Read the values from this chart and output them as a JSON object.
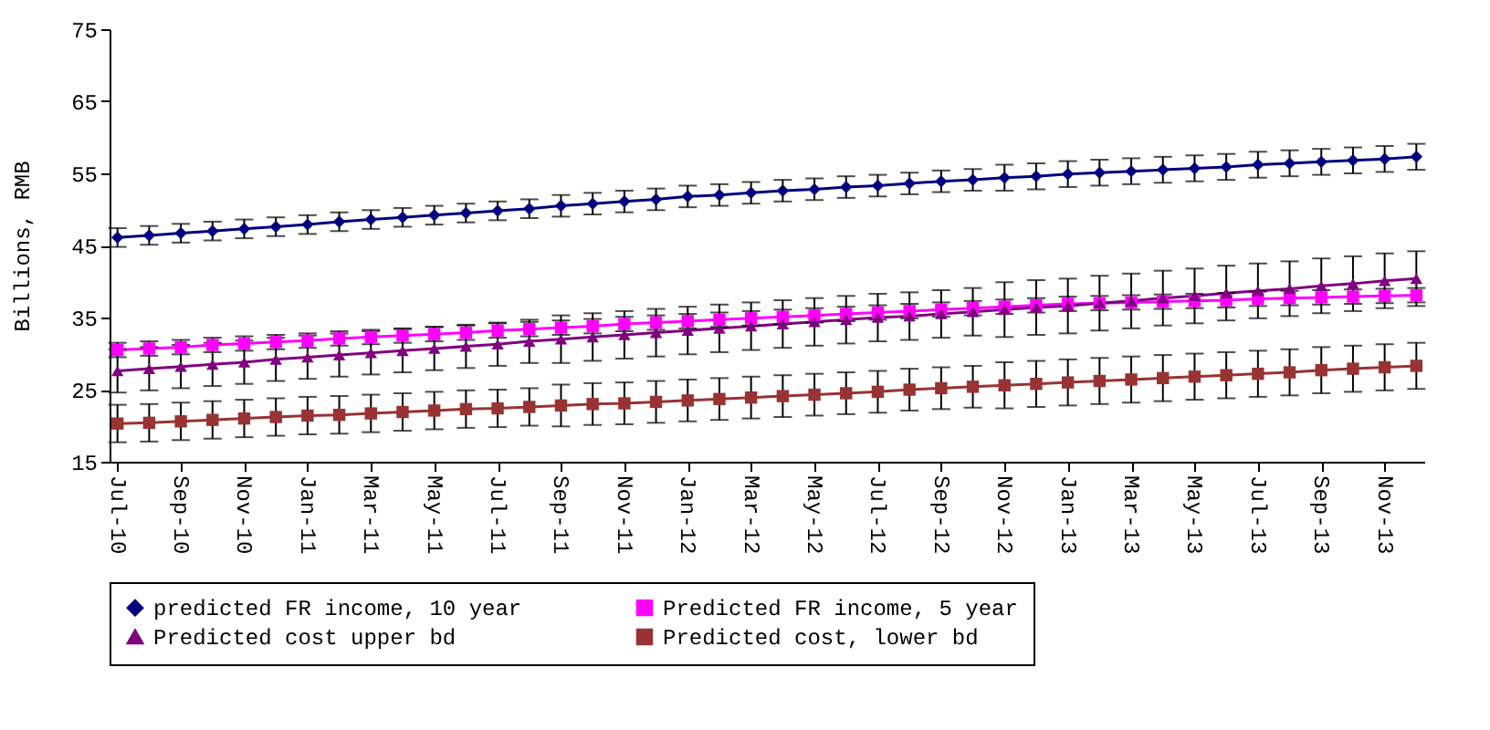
{
  "chart_data": {
    "type": "line",
    "ylabel": "Billions, RMB",
    "categories": [
      "Jul-10",
      null,
      "Sep-10",
      null,
      "Nov-10",
      null,
      "Jan-11",
      null,
      "Mar-11",
      null,
      "May-11",
      null,
      "Jul-11",
      null,
      "Sep-11",
      null,
      "Nov-11",
      null,
      "Jan-12",
      null,
      "Mar-12",
      null,
      "May-12",
      null,
      "Jul-12",
      null,
      "Sep-12",
      null,
      "Nov-12",
      null,
      "Jan-13",
      null,
      "Mar-13",
      null,
      "May-13",
      null,
      "Jul-13",
      null,
      "Sep-13",
      null,
      "Nov-13",
      null
    ],
    "ylim": [
      15,
      75
    ],
    "yticks": [
      15,
      25,
      35,
      45,
      55,
      65,
      75
    ],
    "grid": false,
    "legend": "bottom",
    "series": [
      {
        "name": "predicted FR income, 10 year",
        "color": "#000080",
        "marker": "diamond",
        "values": [
          46.1,
          46.4,
          46.7,
          47.0,
          47.3,
          47.6,
          47.9,
          48.3,
          48.6,
          48.9,
          49.2,
          49.5,
          49.8,
          50.1,
          50.5,
          50.8,
          51.1,
          51.4,
          51.8,
          52.0,
          52.3,
          52.6,
          52.8,
          53.1,
          53.3,
          53.6,
          53.9,
          54.1,
          54.4,
          54.6,
          54.9,
          55.1,
          55.3,
          55.5,
          55.7,
          55.9,
          56.2,
          56.4,
          56.6,
          56.8,
          57.0,
          57.3
        ],
        "errors": [
          1.3,
          1.3,
          1.3,
          1.3,
          1.3,
          1.3,
          1.3,
          1.3,
          1.3,
          1.3,
          1.3,
          1.3,
          1.3,
          1.3,
          1.5,
          1.5,
          1.5,
          1.5,
          1.5,
          1.5,
          1.5,
          1.5,
          1.5,
          1.5,
          1.5,
          1.5,
          1.5,
          1.5,
          1.8,
          1.8,
          1.8,
          1.8,
          1.8,
          1.8,
          1.8,
          1.8,
          1.8,
          1.8,
          1.8,
          1.8,
          1.8,
          1.8
        ]
      },
      {
        "name": "Predicted FR income, 5 year",
        "color": "#ff00ff",
        "marker": "square",
        "values": [
          30.5,
          30.7,
          30.9,
          31.2,
          31.4,
          31.6,
          31.8,
          32.1,
          32.3,
          32.5,
          32.7,
          32.9,
          33.2,
          33.4,
          33.6,
          33.8,
          34.1,
          34.3,
          34.5,
          34.7,
          34.9,
          35.1,
          35.3,
          35.5,
          35.7,
          35.9,
          36.1,
          36.3,
          36.5,
          36.7,
          36.9,
          37.0,
          37.1,
          37.2,
          37.3,
          37.4,
          37.6,
          37.7,
          37.8,
          37.9,
          38.0,
          38.1
        ],
        "errors": [
          1,
          1,
          1,
          1,
          1,
          1,
          1,
          1,
          1,
          1,
          1,
          1,
          1,
          1,
          1,
          1,
          1,
          1,
          1,
          1,
          1,
          1,
          1,
          1,
          1,
          1,
          1,
          1,
          1,
          1,
          1,
          1,
          1,
          1,
          1,
          1,
          1,
          1,
          1,
          1,
          1,
          1
        ]
      },
      {
        "name": "Predicted cost upper bd",
        "color": "#800080",
        "marker": "triangle",
        "values": [
          27.6,
          27.9,
          28.2,
          28.5,
          28.8,
          29.2,
          29.5,
          29.8,
          30.1,
          30.4,
          30.7,
          31.0,
          31.3,
          31.7,
          32.0,
          32.3,
          32.6,
          32.9,
          33.2,
          33.5,
          33.8,
          34.1,
          34.4,
          34.7,
          35.0,
          35.2,
          35.5,
          35.8,
          36.1,
          36.4,
          36.6,
          37.0,
          37.3,
          37.7,
          38.0,
          38.4,
          38.7,
          39.0,
          39.4,
          39.7,
          40.1,
          40.4
        ],
        "errors": [
          3.0,
          3.0,
          3.0,
          3.0,
          3.0,
          3.0,
          3.0,
          3.0,
          3.0,
          3.0,
          3.0,
          3.0,
          3.0,
          3.0,
          3.3,
          3.3,
          3.3,
          3.3,
          3.3,
          3.3,
          3.3,
          3.3,
          3.3,
          3.3,
          3.3,
          3.3,
          3.3,
          3.3,
          3.8,
          3.8,
          3.8,
          3.8,
          3.8,
          3.8,
          3.8,
          3.8,
          3.8,
          3.8,
          3.8,
          3.8,
          3.8,
          3.8
        ]
      },
      {
        "name": "Predicted cost, lower bd",
        "color": "#993333",
        "marker": "square",
        "values": [
          20.3,
          20.4,
          20.6,
          20.8,
          21.0,
          21.2,
          21.4,
          21.5,
          21.7,
          21.9,
          22.1,
          22.3,
          22.4,
          22.6,
          22.8,
          23.0,
          23.1,
          23.3,
          23.5,
          23.7,
          23.9,
          24.1,
          24.3,
          24.5,
          24.7,
          25.0,
          25.2,
          25.4,
          25.6,
          25.8,
          26.0,
          26.2,
          26.4,
          26.6,
          26.8,
          27.0,
          27.2,
          27.4,
          27.7,
          27.9,
          28.1,
          28.3
        ],
        "errors": [
          2.6,
          2.6,
          2.6,
          2.6,
          2.6,
          2.6,
          2.6,
          2.6,
          2.6,
          2.6,
          2.6,
          2.6,
          2.6,
          2.6,
          2.9,
          2.9,
          2.9,
          2.9,
          2.9,
          2.9,
          2.9,
          2.9,
          2.9,
          2.9,
          2.9,
          2.9,
          2.9,
          2.9,
          3.2,
          3.2,
          3.2,
          3.2,
          3.2,
          3.2,
          3.2,
          3.2,
          3.2,
          3.2,
          3.2,
          3.2,
          3.2,
          3.2
        ]
      }
    ]
  }
}
